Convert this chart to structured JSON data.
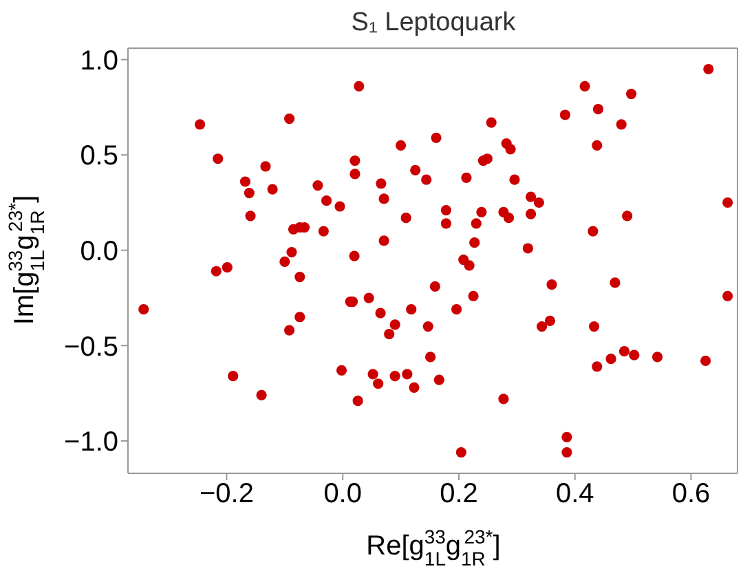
{
  "chart_data": {
    "type": "scatter",
    "title": "S₁ Leptoquark",
    "xlabel": "Re[g$_{1L}$$^{33}$g$_{1R}$$^{23*}$]",
    "ylabel": "Im[g$_{1L}$$^{33}$g$_{1R}$$^{23*}$]",
    "xlim": [
      -0.37,
      0.68
    ],
    "xticks": [
      {
        "value": -0.2,
        "label": "−0.2"
      },
      {
        "value": 0,
        "label": "0.0"
      },
      {
        "value": 0.2,
        "label": "0.2"
      },
      {
        "value": 0.4,
        "label": "0.4"
      },
      {
        "value": 0.6,
        "label": "0.6"
      }
    ],
    "ylim": [
      -1.17,
      1.06
    ],
    "yticks": [
      {
        "value": -1,
        "label": "−1.0"
      },
      {
        "value": -0.5,
        "label": "−0.5"
      },
      {
        "value": 0,
        "label": "0.0"
      },
      {
        "value": 0.5,
        "label": "0.5"
      },
      {
        "value": 1,
        "label": "1.0"
      }
    ],
    "grid": false,
    "marker": "circle",
    "series": [
      {
        "color": "#cc0000",
        "x": [
          -0.246,
          -0.092,
          0.028,
          -0.215,
          -0.133,
          -0.168,
          -0.161,
          -0.121,
          -0.159,
          -0.043,
          -0.028,
          -0.005,
          0.021,
          0.021,
          0.066,
          0.071,
          -0.085,
          -0.074,
          -0.066,
          -0.033,
          0.071,
          -0.088,
          0.02,
          -0.218,
          -0.199,
          -0.1,
          -0.074,
          -0.343,
          0.013,
          0.017,
          0.045,
          0.065,
          -0.074,
          -0.092,
          -0.189,
          -0.14,
          -0.002,
          0.052,
          0.061,
          0.026,
          0.63,
          0.417,
          0.497,
          0.44,
          0.383,
          0.48,
          0.256,
          0.161,
          0.1,
          0.282,
          0.289,
          0.438,
          0.249,
          0.242,
          0.125,
          0.144,
          0.213,
          0.296,
          0.324,
          0.338,
          0.663,
          0.109,
          0.178,
          0.178,
          0.239,
          0.23,
          0.277,
          0.286,
          0.324,
          0.49,
          0.431,
          0.227,
          0.319,
          0.208,
          0.218,
          0.08,
          0.09,
          0.118,
          0.159,
          0.147,
          0.151,
          0.166,
          0.196,
          0.225,
          0.36,
          0.469,
          0.663,
          0.343,
          0.357,
          0.433,
          0.09,
          0.111,
          0.123,
          0.277,
          0.204,
          0.386,
          0.386,
          0.438,
          0.462,
          0.485,
          0.502,
          0.542,
          0.625
        ],
        "values": [
          0.66,
          0.69,
          0.86,
          0.48,
          0.44,
          0.36,
          0.3,
          0.32,
          0.18,
          0.34,
          0.26,
          0.23,
          0.47,
          0.4,
          0.35,
          0.27,
          0.11,
          0.12,
          0.12,
          0.1,
          0.05,
          -0.01,
          -0.03,
          -0.11,
          -0.09,
          -0.06,
          -0.14,
          -0.31,
          -0.27,
          -0.27,
          -0.25,
          -0.33,
          -0.35,
          -0.42,
          -0.66,
          -0.76,
          -0.63,
          -0.65,
          -0.7,
          -0.79,
          0.95,
          0.86,
          0.82,
          0.74,
          0.71,
          0.66,
          0.67,
          0.59,
          0.55,
          0.56,
          0.53,
          0.55,
          0.48,
          0.47,
          0.42,
          0.37,
          0.38,
          0.37,
          0.28,
          0.25,
          0.25,
          0.17,
          0.21,
          0.14,
          0.2,
          0.14,
          0.2,
          0.17,
          0.19,
          0.18,
          0.1,
          0.04,
          0.01,
          -0.05,
          -0.08,
          -0.44,
          -0.39,
          -0.31,
          -0.19,
          -0.4,
          -0.56,
          -0.68,
          -0.31,
          -0.24,
          -0.18,
          -0.17,
          -0.24,
          -0.4,
          -0.37,
          -0.4,
          -0.66,
          -0.65,
          -0.72,
          -0.78,
          -1.06,
          -0.98,
          -1.06,
          -0.61,
          -0.57,
          -0.53,
          -0.55,
          -0.56,
          -0.58
        ]
      }
    ]
  }
}
